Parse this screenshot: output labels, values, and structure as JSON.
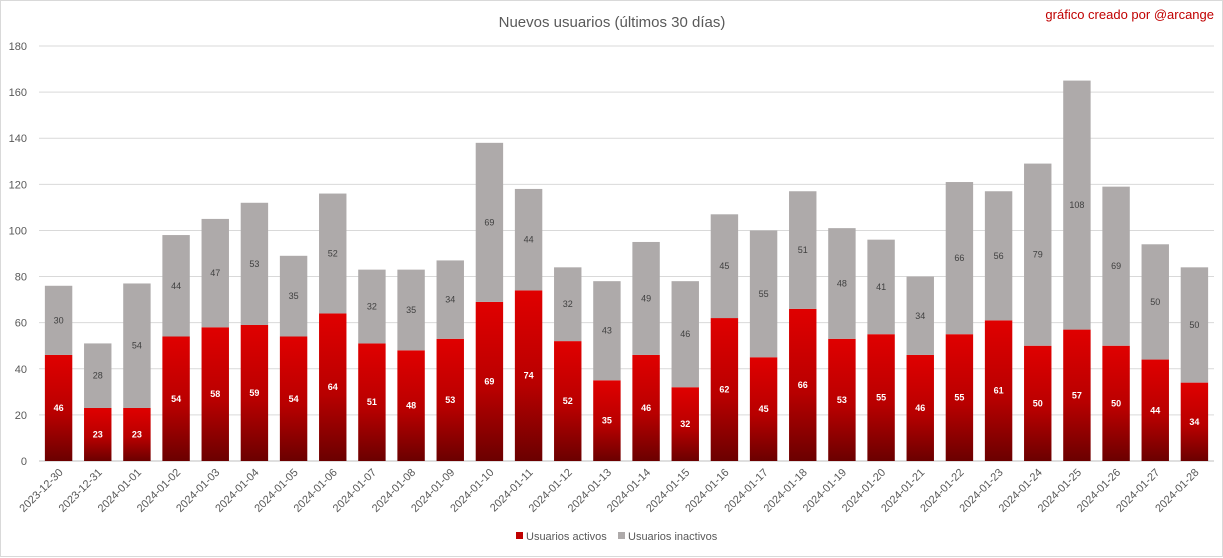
{
  "chart_data": {
    "type": "bar",
    "stacked": true,
    "title": "Nuevos usuarios (últimos 30 días)",
    "credit": "gráfico creado por @arcange",
    "categories": [
      "2023-12-30",
      "2023-12-31",
      "2024-01-01",
      "2024-01-02",
      "2024-01-03",
      "2024-01-04",
      "2024-01-05",
      "2024-01-06",
      "2024-01-07",
      "2024-01-08",
      "2024-01-09",
      "2024-01-10",
      "2024-01-11",
      "2024-01-12",
      "2024-01-13",
      "2024-01-14",
      "2024-01-15",
      "2024-01-16",
      "2024-01-17",
      "2024-01-18",
      "2024-01-19",
      "2024-01-20",
      "2024-01-21",
      "2024-01-22",
      "2024-01-23",
      "2024-01-24",
      "2024-01-25",
      "2024-01-26",
      "2024-01-27",
      "2024-01-28"
    ],
    "series": [
      {
        "name": "Usuarios activos",
        "color": "#c00000",
        "values": [
          46,
          23,
          23,
          54,
          58,
          59,
          54,
          64,
          51,
          48,
          53,
          69,
          74,
          52,
          35,
          46,
          32,
          62,
          45,
          66,
          53,
          55,
          46,
          55,
          61,
          50,
          57,
          50,
          44,
          34
        ]
      },
      {
        "name": "Usuarios inactivos",
        "color": "#aeaaaa",
        "values": [
          30,
          28,
          54,
          44,
          47,
          53,
          35,
          52,
          32,
          35,
          34,
          69,
          44,
          32,
          43,
          49,
          46,
          45,
          55,
          51,
          48,
          41,
          34,
          66,
          56,
          79,
          108,
          69,
          50,
          50
        ]
      }
    ],
    "ylim": [
      0,
      180
    ],
    "yticks": [
      "0",
      "20",
      "40",
      "60",
      "80",
      "100",
      "120",
      "140",
      "160",
      "180"
    ],
    "grid": true,
    "legend_position": "bottom"
  }
}
